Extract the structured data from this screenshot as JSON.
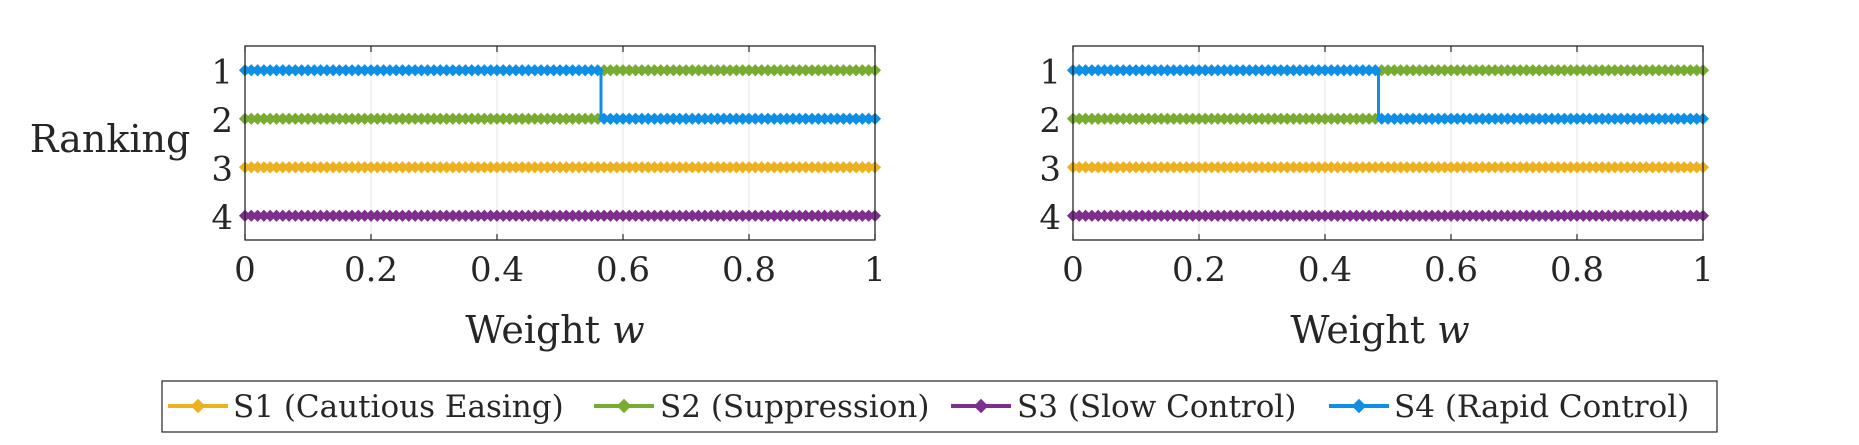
{
  "figure": {
    "ylabel": "Ranking",
    "xlabel_text": "Weight ",
    "xlabel_symbol": "w"
  },
  "colors": {
    "S1": "#EDB120",
    "S2": "#77AC30",
    "S3": "#7E2F8E",
    "S4": "#0E8FE6",
    "axis": "#262626",
    "grid": "#e6e6e6"
  },
  "chart_data": [
    {
      "type": "line",
      "title": "",
      "xlabel": "Weight w",
      "ylabel": "Ranking",
      "xlim": [
        0,
        1
      ],
      "ylim": [
        0.5,
        4.5
      ],
      "y_reversed": true,
      "x_ticks": [
        "0",
        "0.2",
        "0.4",
        "0.6",
        "0.8",
        "1"
      ],
      "y_ticks": [
        "1",
        "2",
        "3",
        "4"
      ],
      "grid": true,
      "marker": "diamond",
      "switch_w": 0.565,
      "series": [
        {
          "key": "S1",
          "name": "S1 (Cautious Easing)",
          "segments": [
            [
              0,
              1,
              3
            ]
          ]
        },
        {
          "key": "S2",
          "name": "S2 (Suppression)",
          "segments": [
            [
              0,
              0.565,
              2
            ],
            [
              0.565,
              1,
              1
            ]
          ]
        },
        {
          "key": "S3",
          "name": "S3 (Slow Control)",
          "segments": [
            [
              0,
              1,
              4
            ]
          ]
        },
        {
          "key": "S4",
          "name": "S4 (Rapid Control)",
          "segments": [
            [
              0,
              0.565,
              1
            ],
            [
              0.565,
              1,
              2
            ]
          ]
        }
      ]
    },
    {
      "type": "line",
      "title": "",
      "xlabel": "Weight w",
      "ylabel": "",
      "xlim": [
        0,
        1
      ],
      "ylim": [
        0.5,
        4.5
      ],
      "y_reversed": true,
      "x_ticks": [
        "0",
        "0.2",
        "0.4",
        "0.6",
        "0.8",
        "1"
      ],
      "y_ticks": [
        "1",
        "2",
        "3",
        "4"
      ],
      "grid": true,
      "marker": "diamond",
      "switch_w": 0.485,
      "series": [
        {
          "key": "S1",
          "name": "S1 (Cautious Easing)",
          "segments": [
            [
              0,
              1,
              3
            ]
          ]
        },
        {
          "key": "S2",
          "name": "S2 (Suppression)",
          "segments": [
            [
              0,
              0.485,
              2
            ],
            [
              0.485,
              1,
              1
            ]
          ]
        },
        {
          "key": "S3",
          "name": "S3 (Slow Control)",
          "segments": [
            [
              0,
              1,
              4
            ]
          ]
        },
        {
          "key": "S4",
          "name": "S4 (Rapid Control)",
          "segments": [
            [
              0,
              0.485,
              1
            ],
            [
              0.485,
              1,
              2
            ]
          ]
        }
      ]
    }
  ],
  "legend": {
    "placement": "bottom",
    "items": [
      {
        "key": "S1",
        "label": "S1 (Cautious Easing)"
      },
      {
        "key": "S2",
        "label": "S2 (Suppression)"
      },
      {
        "key": "S3",
        "label": "S3 (Slow Control)"
      },
      {
        "key": "S4",
        "label": "S4 (Rapid Control)"
      }
    ]
  }
}
